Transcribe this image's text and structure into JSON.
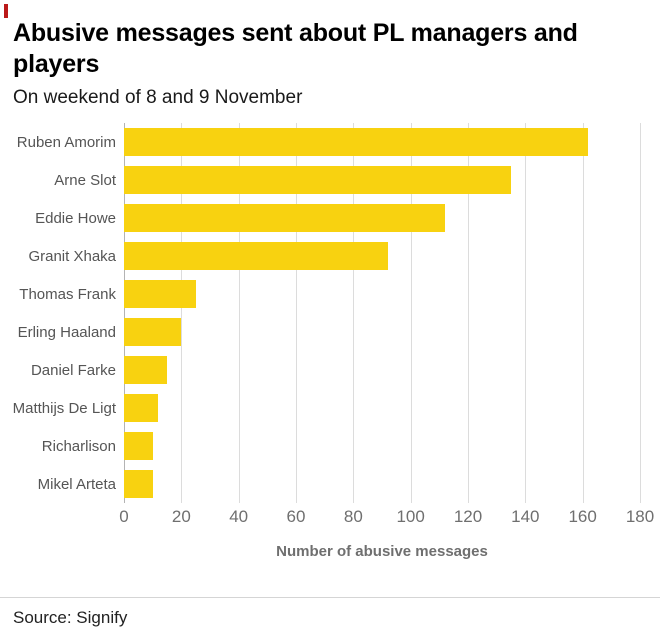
{
  "brand_color": "#bb1919",
  "chart_data": {
    "type": "bar",
    "orientation": "horizontal",
    "title": "Abusive messages sent about PL managers and players",
    "subtitle": "On weekend of 8 and 9 November",
    "categories": [
      "Ruben Amorim",
      "Arne Slot",
      "Eddie Howe",
      "Granit Xhaka",
      "Thomas Frank",
      "Erling Haaland",
      "Daniel Farke",
      "Matthijs De Ligt",
      "Richarlison",
      "Mikel Arteta"
    ],
    "values": [
      162,
      135,
      112,
      92,
      25,
      20,
      15,
      12,
      10,
      10
    ],
    "xlabel": "Number of abusive messages",
    "ylabel": "",
    "xlim": [
      0,
      180
    ],
    "xticks": [
      0,
      20,
      40,
      60,
      80,
      100,
      120,
      140,
      160,
      180
    ],
    "bar_color": "#f8d210",
    "grid": "vertical",
    "legend": "none"
  },
  "footer": {
    "source": "Source: Signify"
  }
}
